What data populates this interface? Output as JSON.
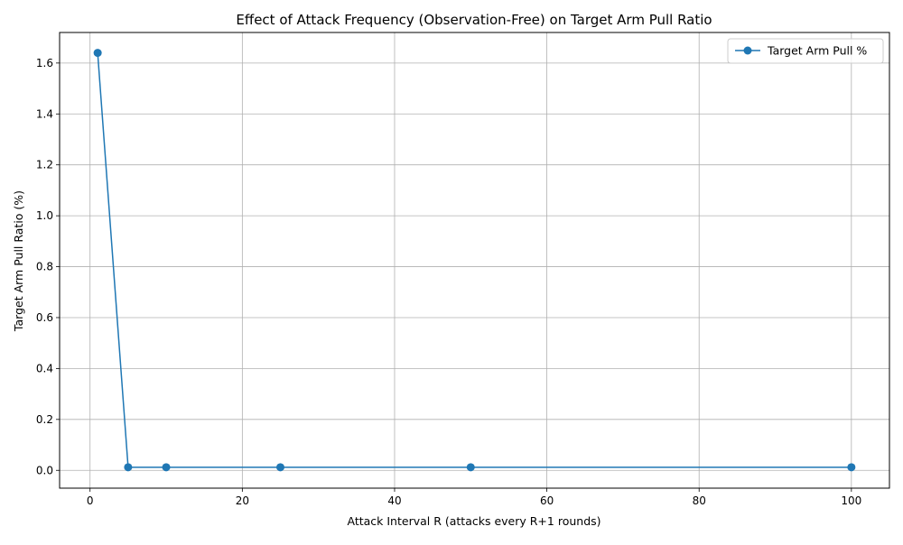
{
  "chart_data": {
    "type": "line",
    "title": "Effect of Attack Frequency (Observation-Free) on Target Arm Pull Ratio",
    "xlabel": "Attack Interval R (attacks every R+1 rounds)",
    "ylabel": "Target Arm Pull Ratio (%)",
    "xlim": [
      -4,
      105
    ],
    "ylim": [
      -0.07,
      1.72
    ],
    "xticks": [
      0,
      20,
      40,
      60,
      80,
      100
    ],
    "yticks": [
      0.0,
      0.2,
      0.4,
      0.6,
      0.8,
      1.0,
      1.2,
      1.4,
      1.6
    ],
    "grid": true,
    "legend_position": "top-right",
    "series": [
      {
        "name": "Target Arm Pull %",
        "color": "#1f77b4",
        "marker": "circle",
        "x": [
          1,
          5,
          10,
          25,
          50,
          100
        ],
        "y": [
          1.64,
          0.012,
          0.012,
          0.012,
          0.012,
          0.012
        ]
      }
    ]
  }
}
